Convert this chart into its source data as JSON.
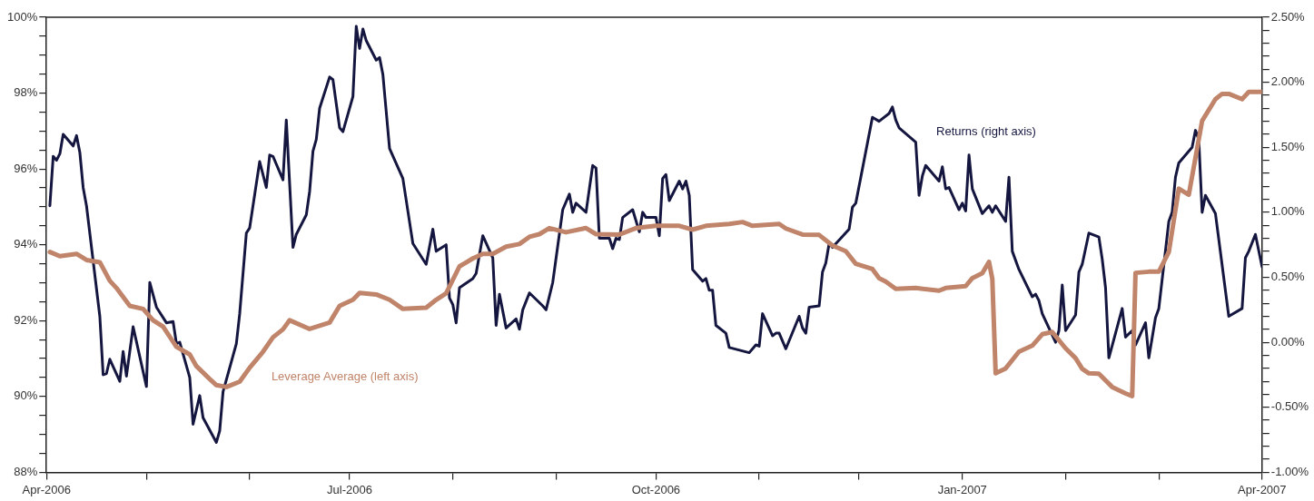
{
  "chart_data": {
    "type": "line",
    "xlim": [
      "2006-04-01",
      "2007-04-01"
    ],
    "xticks": [
      {
        "value": "2006-04-01",
        "label": "Apr-2006"
      },
      {
        "value": "2006-05-01",
        "label": null
      },
      {
        "value": "2006-06-01",
        "label": null
      },
      {
        "value": "2006-07-01",
        "label": "Jul-2006"
      },
      {
        "value": "2006-08-01",
        "label": null
      },
      {
        "value": "2006-09-01",
        "label": null
      },
      {
        "value": "2006-10-01",
        "label": "Oct-2006"
      },
      {
        "value": "2006-11-01",
        "label": null
      },
      {
        "value": "2006-12-01",
        "label": null
      },
      {
        "value": "2007-01-01",
        "label": "Jan-2007"
      },
      {
        "value": "2007-02-01",
        "label": null
      },
      {
        "value": "2007-03-01",
        "label": null
      },
      {
        "value": "2007-04-01",
        "label": "Apr-2007"
      }
    ],
    "ylim": [
      88,
      100
    ],
    "yticks": [
      {
        "value": 88,
        "label": "88%"
      },
      {
        "value": 88.5,
        "label": null
      },
      {
        "value": 89,
        "label": null
      },
      {
        "value": 89.5,
        "label": null
      },
      {
        "value": 90,
        "label": "90%"
      },
      {
        "value": 90.5,
        "label": null
      },
      {
        "value": 91,
        "label": null
      },
      {
        "value": 91.5,
        "label": null
      },
      {
        "value": 92,
        "label": "92%"
      },
      {
        "value": 92.5,
        "label": null
      },
      {
        "value": 93,
        "label": null
      },
      {
        "value": 93.5,
        "label": null
      },
      {
        "value": 94,
        "label": "94%"
      },
      {
        "value": 94.5,
        "label": null
      },
      {
        "value": 95,
        "label": null
      },
      {
        "value": 95.5,
        "label": null
      },
      {
        "value": 96,
        "label": "96%"
      },
      {
        "value": 96.5,
        "label": null
      },
      {
        "value": 97,
        "label": null
      },
      {
        "value": 97.5,
        "label": null
      },
      {
        "value": 98,
        "label": "98%"
      },
      {
        "value": 98.5,
        "label": null
      },
      {
        "value": 99,
        "label": null
      },
      {
        "value": 99.5,
        "label": null
      },
      {
        "value": 100,
        "label": "100%"
      }
    ],
    "y2lim": [
      -1,
      2.5
    ],
    "y2ticks": [
      {
        "value": -1,
        "label": "-1.00%"
      },
      {
        "value": -0.9,
        "label": null
      },
      {
        "value": -0.8,
        "label": null
      },
      {
        "value": -0.7,
        "label": null
      },
      {
        "value": -0.6,
        "label": null
      },
      {
        "value": -0.5,
        "label": "-0.50%"
      },
      {
        "value": -0.4,
        "label": null
      },
      {
        "value": -0.3,
        "label": null
      },
      {
        "value": -0.2,
        "label": null
      },
      {
        "value": -0.1,
        "label": null
      },
      {
        "value": 0,
        "label": "0.00%"
      },
      {
        "value": 0.1,
        "label": null
      },
      {
        "value": 0.2,
        "label": null
      },
      {
        "value": 0.3,
        "label": null
      },
      {
        "value": 0.4,
        "label": null
      },
      {
        "value": 0.5,
        "label": "0.50%"
      },
      {
        "value": 0.6,
        "label": null
      },
      {
        "value": 0.7,
        "label": null
      },
      {
        "value": 0.8,
        "label": null
      },
      {
        "value": 0.9,
        "label": null
      },
      {
        "value": 1,
        "label": "1.00%"
      },
      {
        "value": 1.1,
        "label": null
      },
      {
        "value": 1.2,
        "label": null
      },
      {
        "value": 1.3,
        "label": null
      },
      {
        "value": 1.4,
        "label": null
      },
      {
        "value": 1.5,
        "label": "1.50%"
      },
      {
        "value": 1.6,
        "label": null
      },
      {
        "value": 1.7,
        "label": null
      },
      {
        "value": 1.8,
        "label": null
      },
      {
        "value": 1.9,
        "label": null
      },
      {
        "value": 2,
        "label": "2.00%"
      },
      {
        "value": 2.1,
        "label": null
      },
      {
        "value": 2.2,
        "label": null
      },
      {
        "value": 2.3,
        "label": null
      },
      {
        "value": 2.4,
        "label": null
      },
      {
        "value": 2.5,
        "label": "2.50%"
      }
    ],
    "grid": false,
    "legend": false,
    "marker": "none",
    "line_style": "solid",
    "series": [
      {
        "name": "Leverage Average (left axis)",
        "color": "#c0846a",
        "x": [
          "2006-04-02",
          "2006-04-05",
          "2006-04-10",
          "2006-04-13",
          "2006-04-17",
          "2006-04-20",
          "2006-04-22",
          "2006-04-26",
          "2006-04-30",
          "2006-05-03",
          "2006-05-06",
          "2006-05-10",
          "2006-05-14",
          "2006-05-16",
          "2006-05-20",
          "2006-05-22",
          "2006-05-25",
          "2006-05-29",
          "2006-06-01",
          "2006-06-05",
          "2006-06-08",
          "2006-06-11",
          "2006-06-13",
          "2006-06-19",
          "2006-06-25",
          "2006-06-28",
          "2006-07-02",
          "2006-07-04",
          "2006-07-09",
          "2006-07-13",
          "2006-07-17",
          "2006-07-24",
          "2006-07-27",
          "2006-07-30",
          "2006-08-03",
          "2006-08-07",
          "2006-08-10",
          "2006-08-13",
          "2006-08-17",
          "2006-08-21",
          "2006-08-24",
          "2006-08-27",
          "2006-08-30",
          "2006-09-04",
          "2006-09-10",
          "2006-09-13",
          "2006-09-20",
          "2006-09-25",
          "2006-10-01",
          "2006-10-08",
          "2006-10-12",
          "2006-10-16",
          "2006-10-23",
          "2006-10-27",
          "2006-10-30",
          "2006-11-07",
          "2006-11-09",
          "2006-11-14",
          "2006-11-19",
          "2006-11-23",
          "2006-11-27",
          "2006-11-30",
          "2006-12-05",
          "2006-12-07",
          "2006-12-09",
          "2006-12-12",
          "2006-12-18",
          "2006-12-25",
          "2006-12-27",
          "2007-01-02",
          "2007-01-04",
          "2007-01-07",
          "2007-01-09",
          "2007-01-10",
          "2007-01-11",
          "2007-01-14",
          "2007-01-18",
          "2007-01-22",
          "2007-01-25",
          "2007-01-28",
          "2007-02-01",
          "2007-02-04",
          "2007-02-06",
          "2007-02-08",
          "2007-02-11",
          "2007-02-15",
          "2007-02-19",
          "2007-02-21",
          "2007-02-22",
          "2007-02-26",
          "2007-03-01",
          "2007-03-04",
          "2007-03-07",
          "2007-03-10",
          "2007-03-14",
          "2007-03-18",
          "2007-03-20",
          "2007-03-22",
          "2007-03-26",
          "2007-03-28",
          "2007-04-01"
        ],
        "values": [
          93.81,
          93.7,
          93.76,
          93.6,
          93.54,
          93.05,
          92.86,
          92.39,
          92.31,
          92.01,
          91.84,
          91.31,
          91.11,
          90.8,
          90.46,
          90.3,
          90.25,
          90.39,
          90.76,
          91.18,
          91.56,
          91.77,
          92.01,
          91.78,
          91.95,
          92.39,
          92.55,
          92.73,
          92.69,
          92.55,
          92.31,
          92.34,
          92.55,
          92.72,
          93.43,
          93.64,
          93.76,
          93.76,
          93.95,
          94.02,
          94.21,
          94.28,
          94.44,
          94.33,
          94.44,
          94.28,
          94.27,
          94.44,
          94.5,
          94.5,
          94.4,
          94.5,
          94.55,
          94.6,
          94.5,
          94.55,
          94.43,
          94.27,
          94.26,
          93.98,
          93.83,
          93.5,
          93.36,
          93.12,
          93.03,
          92.84,
          92.86,
          92.79,
          92.86,
          92.91,
          93.12,
          93.25,
          93.55,
          93.1,
          90.61,
          90.74,
          91.18,
          91.34,
          91.64,
          91.7,
          91.27,
          91.01,
          90.73,
          90.61,
          90.6,
          90.25,
          90.08,
          90.01,
          93.26,
          93.29,
          93.29,
          93.81,
          95.48,
          95.32,
          97.27,
          97.84,
          97.98,
          97.98,
          97.84,
          98.03,
          98.03
        ]
      },
      {
        "name": "Returns (right axis)",
        "color": "#15163f",
        "axis": "y2",
        "x": [
          "2006-04-02",
          "2006-04-03",
          "2006-04-04",
          "2006-04-05",
          "2006-04-06",
          "2006-04-09",
          "2006-04-10",
          "2006-04-11",
          "2006-04-12",
          "2006-04-13",
          "2006-04-17",
          "2006-04-18",
          "2006-04-19",
          "2006-04-20",
          "2006-04-23",
          "2006-04-24",
          "2006-04-25",
          "2006-04-27",
          "2006-05-01",
          "2006-05-02",
          "2006-05-04",
          "2006-05-07",
          "2006-05-09",
          "2006-05-10",
          "2006-05-11",
          "2006-05-14",
          "2006-05-15",
          "2006-05-17",
          "2006-05-18",
          "2006-05-22",
          "2006-05-23",
          "2006-05-24",
          "2006-05-28",
          "2006-05-29",
          "2006-05-31",
          "2006-06-01",
          "2006-06-04",
          "2006-06-06",
          "2006-06-07",
          "2006-06-08",
          "2006-06-11",
          "2006-06-12",
          "2006-06-14",
          "2006-06-15",
          "2006-06-18",
          "2006-06-19",
          "2006-06-20",
          "2006-06-21",
          "2006-06-22",
          "2006-06-25",
          "2006-06-26",
          "2006-06-28",
          "2006-06-29",
          "2006-07-02",
          "2006-07-03",
          "2006-07-04",
          "2006-07-05",
          "2006-07-06",
          "2006-07-09",
          "2006-07-10",
          "2006-07-11",
          "2006-07-13",
          "2006-07-17",
          "2006-07-20",
          "2006-07-24",
          "2006-07-26",
          "2006-07-27",
          "2006-07-30",
          "2006-07-31",
          "2006-08-01",
          "2006-08-02",
          "2006-08-03",
          "2006-08-07",
          "2006-08-08",
          "2006-08-10",
          "2006-08-13",
          "2006-08-14",
          "2006-08-15",
          "2006-08-17",
          "2006-08-20",
          "2006-08-21",
          "2006-08-22",
          "2006-08-24",
          "2006-08-28",
          "2006-08-29",
          "2006-08-31",
          "2006-09-03",
          "2006-09-05",
          "2006-09-06",
          "2006-09-07",
          "2006-09-10",
          "2006-09-12",
          "2006-09-13",
          "2006-09-14",
          "2006-09-17",
          "2006-09-18",
          "2006-09-19",
          "2006-09-20",
          "2006-09-21",
          "2006-09-24",
          "2006-09-26",
          "2006-09-27",
          "2006-09-28",
          "2006-10-01",
          "2006-10-02",
          "2006-10-03",
          "2006-10-04",
          "2006-10-05",
          "2006-10-08",
          "2006-10-09",
          "2006-10-10",
          "2006-10-11",
          "2006-10-12",
          "2006-10-15",
          "2006-10-16",
          "2006-10-17",
          "2006-10-18",
          "2006-10-19",
          "2006-10-22",
          "2006-10-23",
          "2006-10-29",
          "2006-10-31",
          "2006-11-01",
          "2006-11-02",
          "2006-11-05",
          "2006-11-06",
          "2006-11-07",
          "2006-11-09",
          "2006-11-13",
          "2006-11-14",
          "2006-11-15",
          "2006-11-16",
          "2006-11-19",
          "2006-11-20",
          "2006-11-21",
          "2006-11-22",
          "2006-11-23",
          "2006-11-28",
          "2006-11-29",
          "2006-11-30",
          "2006-12-05",
          "2006-12-07",
          "2006-12-10",
          "2006-12-11",
          "2006-12-12",
          "2006-12-13",
          "2006-12-18",
          "2006-12-19",
          "2006-12-20",
          "2006-12-21",
          "2006-12-25",
          "2006-12-26",
          "2006-12-27",
          "2006-12-28",
          "2006-12-31",
          "2007-01-01",
          "2007-01-02",
          "2007-01-03",
          "2007-01-04",
          "2007-01-07",
          "2007-01-09",
          "2007-01-10",
          "2007-01-11",
          "2007-01-14",
          "2007-01-15",
          "2007-01-16",
          "2007-01-18",
          "2007-01-22",
          "2007-01-23",
          "2007-01-24",
          "2007-01-25",
          "2007-01-29",
          "2007-01-30",
          "2007-01-31",
          "2007-02-01",
          "2007-02-04",
          "2007-02-05",
          "2007-02-06",
          "2007-02-08",
          "2007-02-11",
          "2007-02-12",
          "2007-02-13",
          "2007-02-14",
          "2007-02-18",
          "2007-02-19",
          "2007-02-21",
          "2007-02-22",
          "2007-02-25",
          "2007-02-26",
          "2007-02-28",
          "2007-03-01",
          "2007-03-04",
          "2007-03-05",
          "2007-03-06",
          "2007-03-07",
          "2007-03-11",
          "2007-03-12",
          "2007-03-13",
          "2007-03-14",
          "2007-03-15",
          "2007-03-18",
          "2007-03-22",
          "2007-03-26",
          "2007-03-27",
          "2007-03-28",
          "2007-03-30",
          "2007-04-01"
        ],
        "values": [
          1.05,
          1.43,
          1.4,
          1.45,
          1.6,
          1.51,
          1.59,
          1.46,
          1.19,
          1.05,
          0.2,
          -0.25,
          -0.24,
          -0.13,
          -0.3,
          -0.07,
          -0.26,
          0.12,
          -0.34,
          0.46,
          0.27,
          0.15,
          0.16,
          -0.01,
          0,
          -0.27,
          -0.63,
          -0.41,
          -0.58,
          -0.77,
          -0.68,
          -0.38,
          -0.01,
          0.22,
          0.84,
          0.88,
          1.39,
          1.19,
          1.44,
          1.43,
          1.25,
          1.71,
          0.73,
          0.83,
          0.98,
          1.16,
          1.47,
          1.56,
          1.8,
          2.04,
          2.02,
          1.65,
          1.62,
          1.89,
          2.43,
          2.26,
          2.41,
          2.32,
          2.17,
          2.19,
          2.06,
          1.49,
          1.26,
          0.76,
          0.6,
          0.87,
          0.7,
          0.75,
          0.34,
          0.29,
          0.15,
          0.42,
          0.49,
          0.53,
          0.82,
          0.65,
          0.13,
          0.37,
          0.11,
          0.18,
          0.1,
          0.25,
          0.38,
          0.28,
          0.25,
          0.46,
          1.02,
          1.14,
          1,
          1.07,
          1,
          1.36,
          1.34,
          0.8,
          0.8,
          0.72,
          0.8,
          0.79,
          0.96,
          1.02,
          0.85,
          1,
          0.96,
          0.96,
          0.82,
          1.26,
          1.29,
          1.09,
          1.24,
          1.18,
          1.24,
          1.13,
          0.56,
          0.47,
          0.49,
          0.4,
          0.4,
          0.13,
          0.07,
          -0.04,
          -0.08,
          -0.02,
          -0.03,
          0.22,
          0.05,
          0.07,
          0.07,
          -0.05,
          0.2,
          0.11,
          0.07,
          0.27,
          0.28,
          0.54,
          0.61,
          0.76,
          0.73,
          0.87,
          1.04,
          1.07,
          1.73,
          1.7,
          1.76,
          1.81,
          1.71,
          1.65,
          1.54,
          1.13,
          1.28,
          1.36,
          1.24,
          1.35,
          1.18,
          1.19,
          1.02,
          1.07,
          1.01,
          1.44,
          1.18,
          0.99,
          1.05,
          1,
          1.05,
          0.93,
          1.27,
          0.7,
          0.56,
          0.35,
          0.37,
          0.32,
          0.22,
          0,
          0.09,
          0.44,
          0.09,
          0.21,
          0.54,
          0.6,
          0.84,
          0.81,
          0.64,
          0.42,
          -0.12,
          0.26,
          0.04,
          0.09,
          -0.02,
          0.15,
          -0.12,
          0.19,
          0.26,
          0.93,
          1,
          1.27,
          1.38,
          1.5,
          1.63,
          1.56,
          1,
          1.13,
          0.99,
          0.2,
          0.26,
          0.65,
          0.7,
          0.83,
          0.58
        ]
      }
    ]
  }
}
